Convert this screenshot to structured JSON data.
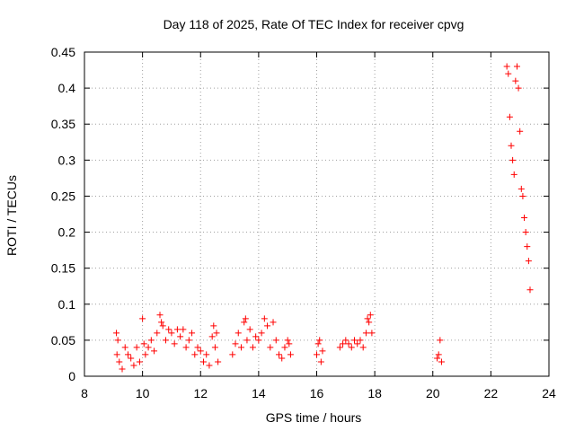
{
  "chart_data": {
    "type": "scatter",
    "title": "Day 118 of 2025, Rate Of TEC Index for receiver cpvg",
    "xlabel": "GPS time / hours",
    "ylabel": "ROTI / TECUs",
    "xlim": [
      8,
      24
    ],
    "ylim": [
      0,
      0.45
    ],
    "x_ticks": [
      "8",
      "10",
      "12",
      "14",
      "16",
      "18",
      "20",
      "22",
      "24"
    ],
    "y_ticks": [
      "0",
      "0.05",
      "0.1",
      "0.15",
      "0.2",
      "0.25",
      "0.3",
      "0.35",
      "0.4",
      "0.45"
    ],
    "grid": true,
    "marker": "+",
    "color": "#ff0000",
    "series": [
      {
        "values": [
          [
            9.1,
            0.06
          ],
          [
            9.12,
            0.03
          ],
          [
            9.15,
            0.05
          ],
          [
            9.2,
            0.02
          ],
          [
            9.3,
            0.01
          ],
          [
            9.4,
            0.04
          ],
          [
            9.5,
            0.03
          ],
          [
            9.6,
            0.025
          ],
          [
            9.7,
            0.015
          ],
          [
            9.8,
            0.04
          ],
          [
            9.9,
            0.02
          ],
          [
            10.0,
            0.08
          ],
          [
            10.05,
            0.045
          ],
          [
            10.1,
            0.03
          ],
          [
            10.2,
            0.04
          ],
          [
            10.3,
            0.05
          ],
          [
            10.4,
            0.035
          ],
          [
            10.5,
            0.06
          ],
          [
            10.6,
            0.085
          ],
          [
            10.65,
            0.075
          ],
          [
            10.7,
            0.07
          ],
          [
            10.8,
            0.05
          ],
          [
            10.9,
            0.065
          ],
          [
            11.0,
            0.06
          ],
          [
            11.1,
            0.045
          ],
          [
            11.2,
            0.065
          ],
          [
            11.3,
            0.055
          ],
          [
            11.4,
            0.065
          ],
          [
            11.5,
            0.04
          ],
          [
            11.6,
            0.05
          ],
          [
            11.7,
            0.06
          ],
          [
            11.8,
            0.03
          ],
          [
            11.9,
            0.04
          ],
          [
            12.0,
            0.035
          ],
          [
            12.1,
            0.02
          ],
          [
            12.2,
            0.03
          ],
          [
            12.3,
            0.015
          ],
          [
            12.4,
            0.055
          ],
          [
            12.45,
            0.07
          ],
          [
            12.5,
            0.04
          ],
          [
            12.55,
            0.06
          ],
          [
            12.6,
            0.02
          ],
          [
            13.1,
            0.03
          ],
          [
            13.2,
            0.045
          ],
          [
            13.3,
            0.06
          ],
          [
            13.4,
            0.04
          ],
          [
            13.5,
            0.075
          ],
          [
            13.55,
            0.08
          ],
          [
            13.6,
            0.05
          ],
          [
            13.7,
            0.065
          ],
          [
            13.8,
            0.04
          ],
          [
            13.9,
            0.055
          ],
          [
            14.0,
            0.05
          ],
          [
            14.1,
            0.06
          ],
          [
            14.2,
            0.08
          ],
          [
            14.3,
            0.07
          ],
          [
            14.4,
            0.04
          ],
          [
            14.5,
            0.075
          ],
          [
            14.6,
            0.05
          ],
          [
            14.7,
            0.03
          ],
          [
            14.8,
            0.025
          ],
          [
            14.9,
            0.04
          ],
          [
            15.0,
            0.05
          ],
          [
            15.05,
            0.045
          ],
          [
            15.1,
            0.03
          ],
          [
            16.0,
            0.03
          ],
          [
            16.05,
            0.045
          ],
          [
            16.1,
            0.05
          ],
          [
            16.15,
            0.02
          ],
          [
            16.2,
            0.035
          ],
          [
            16.8,
            0.04
          ],
          [
            16.9,
            0.045
          ],
          [
            17.0,
            0.05
          ],
          [
            17.1,
            0.045
          ],
          [
            17.2,
            0.04
          ],
          [
            17.3,
            0.05
          ],
          [
            17.4,
            0.045
          ],
          [
            17.5,
            0.05
          ],
          [
            17.6,
            0.04
          ],
          [
            17.7,
            0.06
          ],
          [
            17.75,
            0.08
          ],
          [
            17.8,
            0.075
          ],
          [
            17.85,
            0.085
          ],
          [
            17.9,
            0.06
          ],
          [
            20.15,
            0.025
          ],
          [
            20.2,
            0.03
          ],
          [
            20.25,
            0.05
          ],
          [
            20.3,
            0.02
          ],
          [
            22.55,
            0.43
          ],
          [
            22.6,
            0.42
          ],
          [
            22.65,
            0.36
          ],
          [
            22.7,
            0.32
          ],
          [
            22.75,
            0.3
          ],
          [
            22.8,
            0.28
          ],
          [
            22.85,
            0.41
          ],
          [
            22.9,
            0.43
          ],
          [
            22.95,
            0.4
          ],
          [
            23.0,
            0.34
          ],
          [
            23.05,
            0.26
          ],
          [
            23.1,
            0.25
          ],
          [
            23.15,
            0.22
          ],
          [
            23.2,
            0.2
          ],
          [
            23.25,
            0.18
          ],
          [
            23.3,
            0.16
          ],
          [
            23.35,
            0.12
          ]
        ]
      }
    ]
  }
}
